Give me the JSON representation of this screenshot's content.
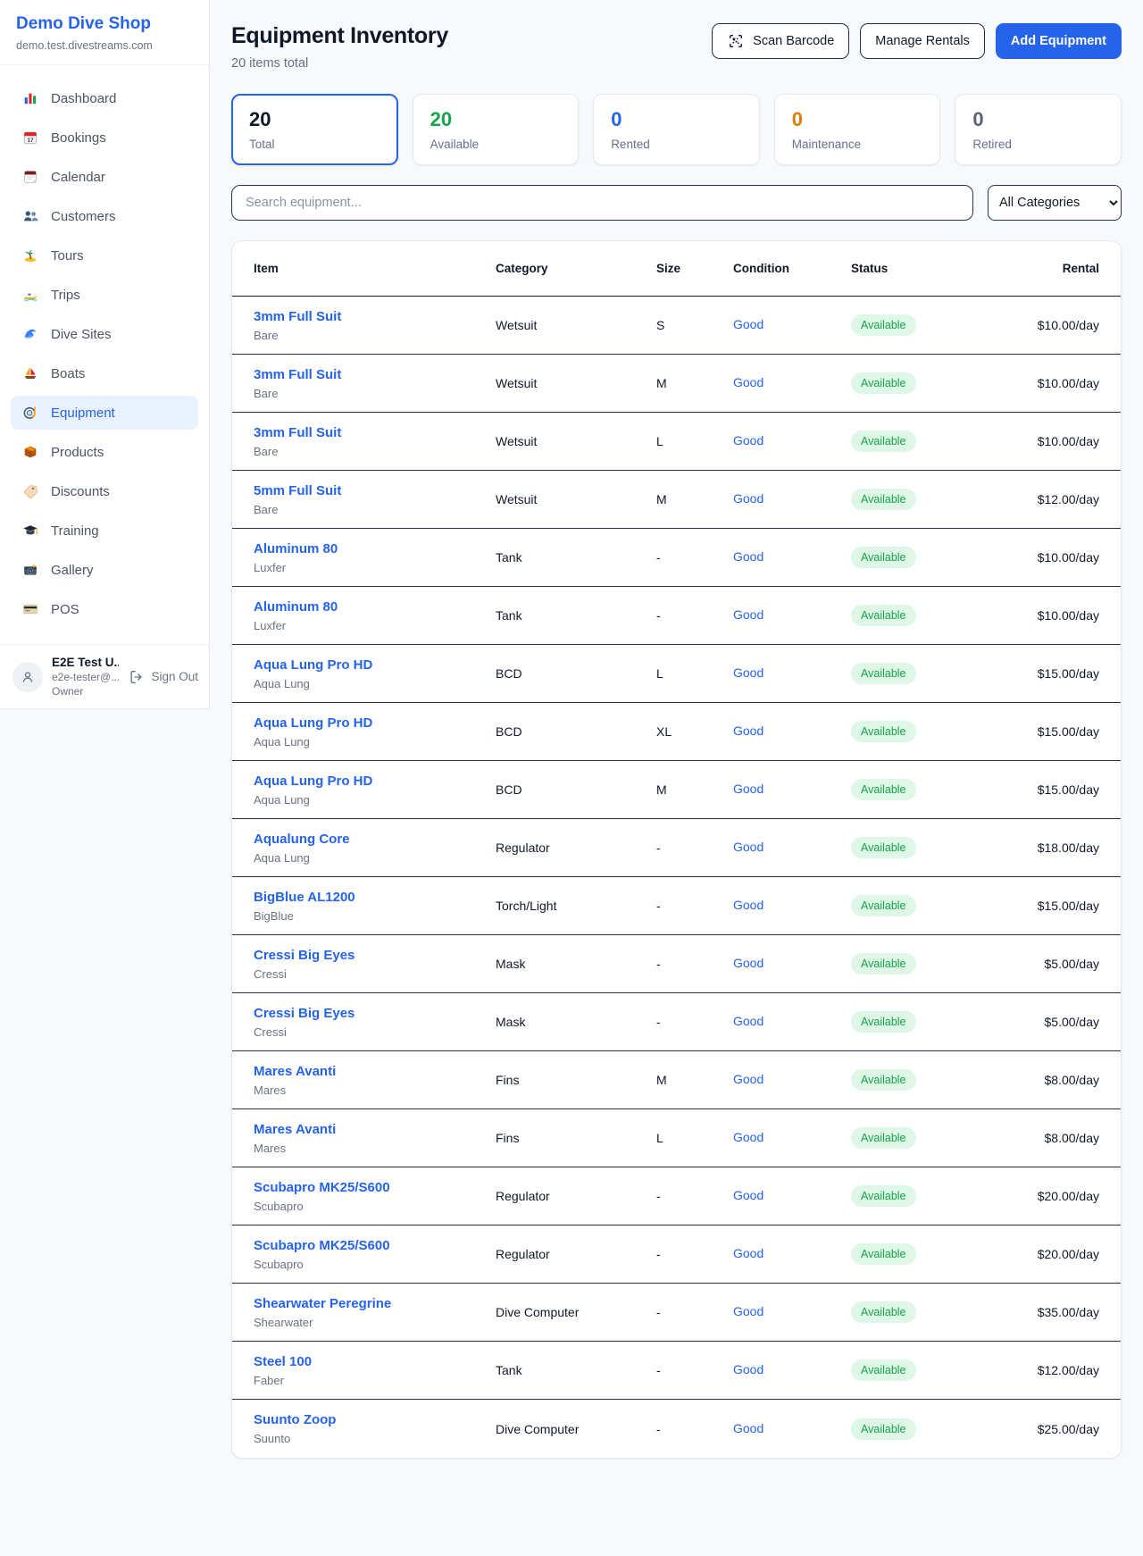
{
  "sidebar": {
    "brand": {
      "name": "Demo Dive Shop",
      "domain": "demo.test.divestreams.com"
    },
    "nav": [
      {
        "icon": "bar-chart-icon",
        "label": "Dashboard",
        "active": false
      },
      {
        "icon": "calendar-date-icon",
        "label": "Bookings",
        "active": false
      },
      {
        "icon": "calendar-page-icon",
        "label": "Calendar",
        "active": false
      },
      {
        "icon": "users-icon",
        "label": "Customers",
        "active": false
      },
      {
        "icon": "island-icon",
        "label": "Tours",
        "active": false
      },
      {
        "icon": "speedboat-icon",
        "label": "Trips",
        "active": false
      },
      {
        "icon": "wave-icon",
        "label": "Dive Sites",
        "active": false
      },
      {
        "icon": "sailboat-icon",
        "label": "Boats",
        "active": false
      },
      {
        "icon": "dive-mask-icon",
        "label": "Equipment",
        "active": true
      },
      {
        "icon": "package-icon",
        "label": "Products",
        "active": false
      },
      {
        "icon": "tag-icon",
        "label": "Discounts",
        "active": false
      },
      {
        "icon": "grad-cap-icon",
        "label": "Training",
        "active": false
      },
      {
        "icon": "camera-icon",
        "label": "Gallery",
        "active": false
      },
      {
        "icon": "credit-card-icon",
        "label": "POS",
        "active": false
      }
    ],
    "user": {
      "name": "E2E Test U...",
      "email": "e2e-tester@...",
      "role": "Owner",
      "sign_out_label": "Sign Out"
    }
  },
  "header": {
    "title": "Equipment Inventory",
    "subtitle": "20 items total",
    "scan_barcode_label": "Scan Barcode",
    "manage_rentals_label": "Manage Rentals",
    "add_equipment_label": "Add Equipment"
  },
  "stats": [
    {
      "value": "20",
      "label": "Total",
      "color": "#101828",
      "selected": true
    },
    {
      "value": "20",
      "label": "Available",
      "color": "#16a34a",
      "selected": false
    },
    {
      "value": "0",
      "label": "Rented",
      "color": "#2563eb",
      "selected": false
    },
    {
      "value": "0",
      "label": "Maintenance",
      "color": "#e07c00",
      "selected": false
    },
    {
      "value": "0",
      "label": "Retired",
      "color": "#5b6572",
      "selected": false
    }
  ],
  "filters": {
    "search_placeholder": "Search equipment...",
    "category_selected": "All Categories"
  },
  "table": {
    "columns": {
      "item": "Item",
      "category": "Category",
      "size": "Size",
      "condition": "Condition",
      "status": "Status",
      "rental": "Rental"
    },
    "rows": [
      {
        "item": "3mm Full Suit",
        "brand": "Bare",
        "category": "Wetsuit",
        "size": "S",
        "condition": "Good",
        "status": "Available",
        "rental": "$10.00/day"
      },
      {
        "item": "3mm Full Suit",
        "brand": "Bare",
        "category": "Wetsuit",
        "size": "M",
        "condition": "Good",
        "status": "Available",
        "rental": "$10.00/day"
      },
      {
        "item": "3mm Full Suit",
        "brand": "Bare",
        "category": "Wetsuit",
        "size": "L",
        "condition": "Good",
        "status": "Available",
        "rental": "$10.00/day"
      },
      {
        "item": "5mm Full Suit",
        "brand": "Bare",
        "category": "Wetsuit",
        "size": "M",
        "condition": "Good",
        "status": "Available",
        "rental": "$12.00/day"
      },
      {
        "item": "Aluminum 80",
        "brand": "Luxfer",
        "category": "Tank",
        "size": "-",
        "condition": "Good",
        "status": "Available",
        "rental": "$10.00/day"
      },
      {
        "item": "Aluminum 80",
        "brand": "Luxfer",
        "category": "Tank",
        "size": "-",
        "condition": "Good",
        "status": "Available",
        "rental": "$10.00/day"
      },
      {
        "item": "Aqua Lung Pro HD",
        "brand": "Aqua Lung",
        "category": "BCD",
        "size": "L",
        "condition": "Good",
        "status": "Available",
        "rental": "$15.00/day"
      },
      {
        "item": "Aqua Lung Pro HD",
        "brand": "Aqua Lung",
        "category": "BCD",
        "size": "XL",
        "condition": "Good",
        "status": "Available",
        "rental": "$15.00/day"
      },
      {
        "item": "Aqua Lung Pro HD",
        "brand": "Aqua Lung",
        "category": "BCD",
        "size": "M",
        "condition": "Good",
        "status": "Available",
        "rental": "$15.00/day"
      },
      {
        "item": "Aqualung Core",
        "brand": "Aqua Lung",
        "category": "Regulator",
        "size": "-",
        "condition": "Good",
        "status": "Available",
        "rental": "$18.00/day"
      },
      {
        "item": "BigBlue AL1200",
        "brand": "BigBlue",
        "category": "Torch/Light",
        "size": "-",
        "condition": "Good",
        "status": "Available",
        "rental": "$15.00/day"
      },
      {
        "item": "Cressi Big Eyes",
        "brand": "Cressi",
        "category": "Mask",
        "size": "-",
        "condition": "Good",
        "status": "Available",
        "rental": "$5.00/day"
      },
      {
        "item": "Cressi Big Eyes",
        "brand": "Cressi",
        "category": "Mask",
        "size": "-",
        "condition": "Good",
        "status": "Available",
        "rental": "$5.00/day"
      },
      {
        "item": "Mares Avanti",
        "brand": "Mares",
        "category": "Fins",
        "size": "M",
        "condition": "Good",
        "status": "Available",
        "rental": "$8.00/day"
      },
      {
        "item": "Mares Avanti",
        "brand": "Mares",
        "category": "Fins",
        "size": "L",
        "condition": "Good",
        "status": "Available",
        "rental": "$8.00/day"
      },
      {
        "item": "Scubapro MK25/S600",
        "brand": "Scubapro",
        "category": "Regulator",
        "size": "-",
        "condition": "Good",
        "status": "Available",
        "rental": "$20.00/day"
      },
      {
        "item": "Scubapro MK25/S600",
        "brand": "Scubapro",
        "category": "Regulator",
        "size": "-",
        "condition": "Good",
        "status": "Available",
        "rental": "$20.00/day"
      },
      {
        "item": "Shearwater Peregrine",
        "brand": "Shearwater",
        "category": "Dive Computer",
        "size": "-",
        "condition": "Good",
        "status": "Available",
        "rental": "$35.00/day"
      },
      {
        "item": "Steel 100",
        "brand": "Faber",
        "category": "Tank",
        "size": "-",
        "condition": "Good",
        "status": "Available",
        "rental": "$12.00/day"
      },
      {
        "item": "Suunto Zoop",
        "brand": "Suunto",
        "category": "Dive Computer",
        "size": "-",
        "condition": "Good",
        "status": "Available",
        "rental": "$25.00/day"
      }
    ]
  }
}
